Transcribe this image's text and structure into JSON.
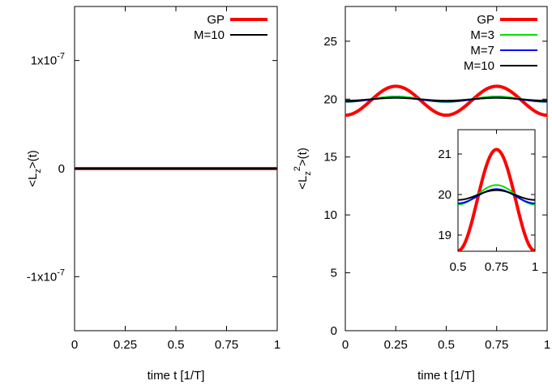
{
  "chart_data": [
    {
      "type": "line",
      "xlabel": "time t [1/T]",
      "ylabel": "<L_z>(t)",
      "xlim": [
        0,
        1
      ],
      "ylim": [
        -1.5e-07,
        1.5e-07
      ],
      "xticks": [
        0,
        0.25,
        0.5,
        0.75,
        1
      ],
      "xtick_labels": [
        "0",
        "0.25",
        "0.5",
        "0.75",
        "1"
      ],
      "yticks": [
        -1e-07,
        0,
        1e-07
      ],
      "ytick_labels": [
        "-1x10-7",
        "0",
        "1x10-7"
      ],
      "legend_position": "top-right",
      "series": [
        {
          "name": "GP",
          "color": "#ff0000",
          "x": [
            0,
            1
          ],
          "y": [
            0,
            0
          ]
        },
        {
          "name": "M=10",
          "color": "#000000",
          "x": [
            0,
            1
          ],
          "y": [
            0,
            0
          ]
        }
      ]
    },
    {
      "type": "line",
      "xlabel": "time t [1/T]",
      "ylabel": "<L_z^2>(t)",
      "xlim": [
        0,
        1
      ],
      "ylim": [
        0,
        28
      ],
      "xticks": [
        0,
        0.25,
        0.5,
        0.75,
        1
      ],
      "xtick_labels": [
        "0",
        "0.25",
        "0.5",
        "0.75",
        "1"
      ],
      "yticks": [
        0,
        5,
        10,
        15,
        20,
        25
      ],
      "ytick_labels": [
        "0",
        "5",
        "10",
        "15",
        "20",
        "25"
      ],
      "legend_position": "top-right",
      "series": [
        {
          "name": "GP",
          "color": "#ff0000",
          "x": [
            0,
            0.125,
            0.25,
            0.375,
            0.5,
            0.625,
            0.75,
            0.875,
            1
          ],
          "y": [
            18.75,
            20.0,
            21.25,
            20.0,
            18.75,
            20.0,
            21.25,
            20.0,
            18.75
          ]
        },
        {
          "name": "M=3",
          "color": "#00e000",
          "x": [
            0,
            0.125,
            0.25,
            0.375,
            0.5,
            0.625,
            0.75,
            0.875,
            1
          ],
          "y": [
            19.78,
            20.02,
            20.26,
            20.02,
            19.78,
            20.02,
            20.26,
            20.02,
            19.78
          ]
        },
        {
          "name": "M=7",
          "color": "#0000ff",
          "x": [
            0,
            0.125,
            0.25,
            0.375,
            0.5,
            0.625,
            0.75,
            0.875,
            1
          ],
          "y": [
            19.8,
            19.98,
            20.15,
            19.98,
            19.8,
            19.98,
            20.15,
            19.98,
            19.8
          ]
        },
        {
          "name": "M=10",
          "color": "#000000",
          "x": [
            0,
            0.125,
            0.25,
            0.375,
            0.5,
            0.625,
            0.75,
            0.875,
            1
          ],
          "y": [
            19.88,
            20.0,
            20.12,
            20.0,
            19.88,
            20.0,
            20.12,
            20.0,
            19.88
          ]
        }
      ],
      "inset": {
        "type": "line",
        "xlim": [
          0.5,
          1
        ],
        "ylim": [
          18.6,
          21.6
        ],
        "xticks": [
          0.5,
          0.75,
          1
        ],
        "xtick_labels": [
          "0.5",
          "0.75",
          "1"
        ],
        "yticks": [
          19,
          20,
          21
        ],
        "ytick_labels": [
          "19",
          "20",
          "21"
        ]
      }
    }
  ]
}
